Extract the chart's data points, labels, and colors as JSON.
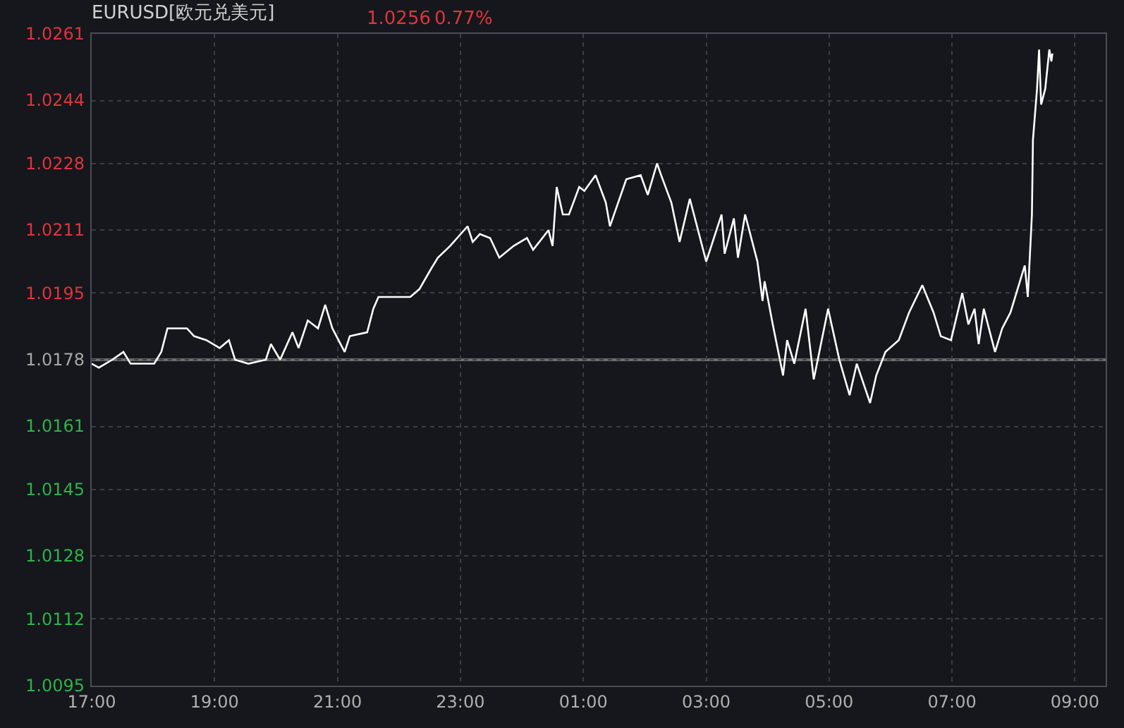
{
  "chart_data": {
    "type": "line",
    "title": "EURUSD[欧元兑美元]",
    "annotations": [
      "1.0256",
      "0.77%"
    ],
    "x": [
      "--07-13T17:00",
      "--07-13T17:07",
      "--07-13T17:20",
      "--07-13T17:31",
      "--07-13T17:38",
      "--07-13T18:01",
      "--07-13T18:08",
      "--07-13T18:14",
      "--07-13T18:33",
      "--07-13T18:40",
      "--07-13T18:52",
      "--07-13T19:05",
      "--07-13T19:14",
      "--07-13T19:20",
      "--07-13T19:33",
      "--07-13T19:50",
      "--07-13T19:55",
      "--07-13T20:04",
      "--07-13T20:16",
      "--07-13T20:22",
      "--07-13T20:31",
      "--07-13T20:41",
      "--07-13T20:48",
      "--07-13T20:55",
      "--07-13T21:07",
      "--07-13T21:12",
      "--07-13T21:29",
      "--07-13T21:35",
      "--07-13T21:40",
      "--07-13T22:11",
      "--07-13T22:20",
      "--07-13T22:31",
      "--07-13T22:38",
      "--07-13T22:50",
      "--07-13T23:07",
      "--07-13T23:12",
      "--07-13T23:19",
      "--07-13T23:29",
      "--07-13T23:38",
      "--07-13T23:52",
      "--07-14T00:05",
      "--07-14T00:11",
      "--07-14T00:26",
      "--07-14T00:30",
      "--07-14T00:34",
      "--07-14T00:40",
      "--07-14T00:46",
      "--07-14T00:56",
      "--07-14T01:01",
      "--07-14T01:12",
      "--07-14T01:22",
      "--07-14T01:26",
      "--07-14T01:34",
      "--07-14T01:42",
      "--07-14T01:56",
      "--07-14T02:03",
      "--07-14T02:12",
      "--07-14T02:16",
      "--07-14T02:26",
      "--07-14T02:34",
      "--07-14T02:44",
      "--07-14T03:00",
      "--07-14T03:15",
      "--07-14T03:18",
      "--07-14T03:27",
      "--07-14T03:31",
      "--07-14T03:38",
      "--07-14T03:50",
      "--07-14T03:55",
      "--07-14T03:57",
      "--07-14T04:05",
      "--07-14T04:15",
      "--07-14T04:19",
      "--07-14T04:26",
      "--07-14T04:37",
      "--07-14T04:45",
      "--07-14T04:59",
      "--07-14T05:10",
      "--07-14T05:20",
      "--07-14T05:27",
      "--07-14T05:40",
      "--07-14T05:46",
      "--07-14T05:55",
      "--07-14T06:08",
      "--07-14T06:18",
      "--07-14T06:31",
      "--07-14T06:42",
      "--07-14T06:49",
      "--07-14T06:59",
      "--07-14T07:10",
      "--07-14T07:16",
      "--07-14T07:22",
      "--07-14T07:26",
      "--07-14T07:31",
      "--07-14T07:42",
      "--07-14T07:49",
      "--07-14T07:57",
      "--07-14T08:11",
      "--07-14T08:14",
      "--07-14T08:18",
      "--07-14T08:19",
      "--07-14T08:23",
      "--07-14T08:25",
      "--07-14T08:27",
      "--07-14T08:31",
      "--07-14T08:35",
      "--07-14T08:37",
      "--07-14T08:38"
    ],
    "series": [
      {
        "color": "#ffffff",
        "values": [
          1.0177,
          1.0176,
          1.0178,
          1.018,
          1.0177,
          1.0177,
          1.018,
          1.0186,
          1.0186,
          1.0184,
          1.0183,
          1.0181,
          1.0183,
          1.0178,
          1.0177,
          1.0178,
          1.0182,
          1.0178,
          1.0185,
          1.0181,
          1.0188,
          1.0186,
          1.0192,
          1.0186,
          1.018,
          1.0184,
          1.0185,
          1.0191,
          1.0194,
          1.0194,
          1.0196,
          1.0201,
          1.0204,
          1.0207,
          1.0212,
          1.0208,
          1.021,
          1.0209,
          1.0204,
          1.0207,
          1.0209,
          1.0206,
          1.0211,
          1.0207,
          1.0222,
          1.0215,
          1.0215,
          1.0222,
          1.0221,
          1.0225,
          1.0218,
          1.0212,
          1.0218,
          1.0224,
          1.0225,
          1.022,
          1.0228,
          1.0225,
          1.0218,
          1.0208,
          1.0219,
          1.0203,
          1.0215,
          1.0205,
          1.0214,
          1.0204,
          1.0215,
          1.0203,
          1.0193,
          1.0198,
          1.0187,
          1.0174,
          1.0183,
          1.0177,
          1.0191,
          1.0173,
          1.0191,
          1.0178,
          1.0169,
          1.0177,
          1.0167,
          1.0174,
          1.018,
          1.0183,
          1.019,
          1.0197,
          1.019,
          1.0184,
          1.0183,
          1.0195,
          1.0187,
          1.0191,
          1.0182,
          1.0191,
          1.018,
          1.0186,
          1.019,
          1.0202,
          1.0194,
          1.0215,
          1.0234,
          1.0247,
          1.0257,
          1.0243,
          1.0247,
          1.0257,
          1.0254,
          1.0256
        ]
      }
    ],
    "xlim": [
      "--07-13T17:00",
      "--07-14T09:30"
    ],
    "xticks": [
      {
        "value": "--07-13T17:00",
        "label": "17:00"
      },
      {
        "value": "--07-13T19:00",
        "label": "19:00"
      },
      {
        "value": "--07-13T21:00",
        "label": "21:00"
      },
      {
        "value": "--07-13T23:00",
        "label": "23:00"
      },
      {
        "value": "--07-14T01:00",
        "label": "01:00"
      },
      {
        "value": "--07-14T03:00",
        "label": "03:00"
      },
      {
        "value": "--07-14T05:00",
        "label": "05:00"
      },
      {
        "value": "--07-14T07:00",
        "label": "07:00"
      },
      {
        "value": "--07-14T09:00",
        "label": "09:00"
      }
    ],
    "ylim": [
      1.0095,
      1.0261
    ],
    "yticks": [
      1.0095,
      1.0112,
      1.0128,
      1.0145,
      1.0161,
      1.0178,
      1.0195,
      1.0211,
      1.0228,
      1.0244,
      1.0261
    ],
    "ref_lines": [
      {
        "axis": "y",
        "value": 1.0178,
        "color": "#6e6e6e",
        "line_style": "solid"
      }
    ],
    "grid": true,
    "marker": "none",
    "line_style": "solid"
  }
}
